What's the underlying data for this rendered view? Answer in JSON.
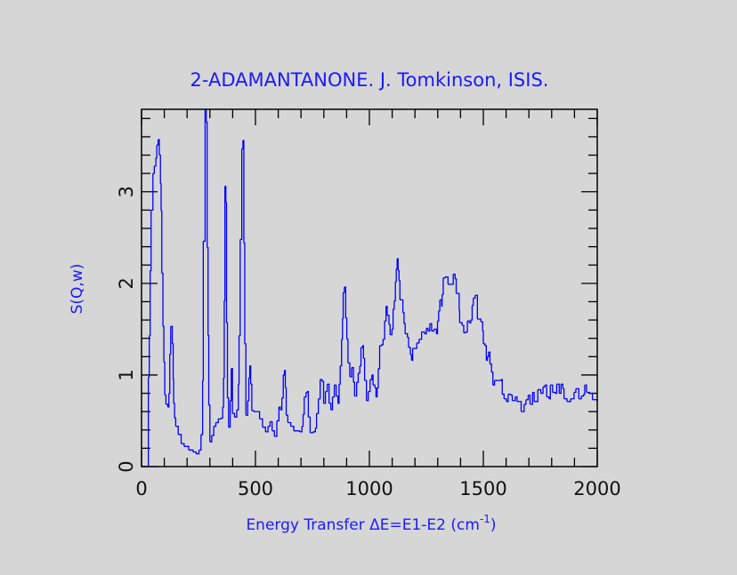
{
  "chart_data": {
    "type": "line",
    "style": "step",
    "title": "2-ADAMANTANONE. J. Tomkinson, ISIS.",
    "xlabel": "Energy Transfer ΔE=E1-E2 (cm",
    "xlabel_superscript": "-1",
    "xlabel_suffix": ")",
    "ylabel": "S(Q,w)",
    "xlim": [
      0,
      2000
    ],
    "ylim": [
      0,
      3.9
    ],
    "x_ticks": [
      0,
      500,
      1000,
      1500,
      2000
    ],
    "x_tick_labels": [
      "0",
      "500",
      "1000",
      "1500",
      "2000"
    ],
    "x_minor_step": 100,
    "y_ticks": [
      0,
      1,
      2,
      3
    ],
    "y_tick_labels": [
      "0",
      "1",
      "2",
      "3"
    ],
    "y_minor_step": 0.2,
    "grid": false,
    "colors": {
      "line": "#0000ff",
      "text": "#1a1aff",
      "axes": "#000000",
      "background": "#d6d6d6"
    },
    "x": [
      0,
      17,
      30,
      34,
      38,
      42,
      50,
      56,
      63,
      67,
      73,
      78,
      83,
      86,
      89,
      94,
      98,
      102,
      107,
      115,
      120,
      124,
      128,
      135,
      139,
      141,
      145,
      150,
      161,
      174,
      187,
      207,
      226,
      239,
      252,
      261,
      268,
      271,
      279,
      284,
      288,
      292,
      295,
      300,
      308,
      317,
      326,
      337,
      350,
      356,
      360,
      363,
      366,
      370,
      373,
      377,
      382,
      389,
      394,
      399,
      408,
      418,
      425,
      428,
      433,
      440,
      445,
      449,
      453,
      458,
      466,
      471,
      475,
      479,
      484,
      492,
      505,
      518,
      531,
      544,
      555,
      564,
      573,
      583,
      594,
      603,
      609,
      616,
      622,
      627,
      631,
      635,
      642,
      655,
      668,
      694,
      704,
      709,
      714,
      722,
      727,
      732,
      740,
      753,
      763,
      768,
      776,
      784,
      792,
      799,
      807,
      815,
      823,
      831,
      838,
      846,
      854,
      862,
      867,
      872,
      878,
      882,
      885,
      890,
      896,
      901,
      906,
      914,
      922,
      930,
      935,
      944,
      951,
      958,
      963,
      970,
      974,
      979,
      987,
      995,
      1003,
      1011,
      1016,
      1024,
      1029,
      1034,
      1039,
      1045,
      1053,
      1060,
      1067,
      1073,
      1078,
      1086,
      1091,
      1099,
      1104,
      1109,
      1114,
      1118,
      1122,
      1126,
      1130,
      1134,
      1142,
      1147,
      1152,
      1157,
      1162,
      1167,
      1172,
      1180,
      1185,
      1190,
      1198,
      1208,
      1218,
      1229,
      1242,
      1250,
      1257,
      1265,
      1273,
      1283,
      1294,
      1299,
      1304,
      1309,
      1317,
      1319,
      1324,
      1332,
      1345,
      1358,
      1368,
      1376,
      1381,
      1391,
      1394,
      1396,
      1407,
      1414,
      1422,
      1430,
      1438,
      1445,
      1451,
      1456,
      1464,
      1471,
      1474,
      1484,
      1489,
      1497,
      1500,
      1507,
      1513,
      1518,
      1523,
      1529,
      1536,
      1542,
      1549,
      1568,
      1578,
      1583,
      1591,
      1601,
      1609,
      1620,
      1627,
      1640,
      1648,
      1661,
      1666,
      1679,
      1687,
      1697,
      1705,
      1716,
      1723,
      1739,
      1752,
      1762,
      1770,
      1778,
      1788,
      1794,
      1804,
      1815,
      1822,
      1833,
      1841,
      1849,
      1854,
      1867,
      1883,
      1898,
      1906,
      1914,
      1919,
      1930,
      1940,
      1945,
      1953,
      1966,
      1979,
      2000
    ],
    "y": [
      0,
      0,
      0.98,
      1.43,
      2.14,
      2.8,
      3.2,
      3.28,
      3.37,
      3.51,
      3.57,
      3.4,
      3.09,
      2.79,
      2.11,
      1.53,
      1.14,
      0.78,
      0.68,
      0.65,
      0.8,
      1.23,
      1.53,
      1.34,
      0.95,
      0.69,
      0.53,
      0.44,
      0.35,
      0.25,
      0.22,
      0.18,
      0.16,
      0.14,
      0.18,
      0.35,
      0.94,
      2.46,
      3.9,
      3.76,
      2.39,
      1.43,
      0.67,
      0.27,
      0.34,
      0.44,
      0.48,
      0.52,
      0.53,
      0.65,
      0.97,
      1.81,
      3.06,
      2.88,
      1.57,
      0.75,
      0.43,
      0.72,
      1.07,
      0.58,
      0.54,
      0.62,
      0.9,
      1.43,
      2.48,
      3.47,
      3.56,
      2.44,
      1.34,
      0.56,
      0.72,
      0.97,
      1.1,
      0.9,
      0.61,
      0.6,
      0.6,
      0.52,
      0.43,
      0.38,
      0.44,
      0.49,
      0.39,
      0.33,
      0.5,
      0.65,
      0.62,
      0.75,
      1.0,
      1.05,
      0.86,
      0.56,
      0.48,
      0.44,
      0.39,
      0.38,
      0.44,
      0.57,
      0.76,
      0.81,
      0.82,
      0.54,
      0.37,
      0.38,
      0.42,
      0.58,
      0.74,
      0.95,
      0.93,
      0.69,
      0.82,
      0.9,
      0.69,
      0.62,
      0.76,
      0.89,
      0.77,
      0.69,
      0.9,
      1.1,
      1.39,
      1.62,
      1.9,
      1.96,
      1.62,
      1.39,
      1.13,
      0.98,
      1.08,
      0.92,
      0.77,
      0.92,
      1.02,
      1.1,
      1.3,
      1.32,
      1.18,
      0.94,
      0.72,
      0.82,
      0.95,
      1.0,
      0.89,
      0.86,
      0.76,
      0.86,
      1.07,
      1.32,
      1.33,
      1.39,
      1.59,
      1.75,
      1.65,
      1.55,
      1.44,
      1.5,
      1.72,
      1.81,
      2.02,
      2.16,
      2.27,
      2.14,
      2.03,
      1.82,
      1.82,
      1.68,
      1.56,
      1.45,
      1.45,
      1.41,
      1.3,
      1.22,
      1.16,
      1.29,
      1.29,
      1.35,
      1.39,
      1.47,
      1.45,
      1.51,
      1.48,
      1.56,
      1.48,
      1.5,
      1.45,
      1.59,
      1.7,
      1.82,
      1.75,
      1.88,
      2.06,
      2.07,
      1.99,
      1.99,
      2.1,
      2.05,
      1.89,
      1.89,
      1.7,
      1.57,
      1.54,
      1.46,
      1.47,
      1.59,
      1.57,
      1.6,
      1.76,
      1.84,
      1.87,
      1.87,
      1.61,
      1.61,
      1.58,
      1.48,
      1.34,
      1.32,
      1.16,
      1.2,
      1.25,
      1.12,
      1.03,
      0.89,
      0.94,
      0.94,
      0.95,
      0.79,
      0.74,
      0.71,
      0.79,
      0.78,
      0.72,
      0.76,
      0.71,
      0.71,
      0.6,
      0.68,
      0.73,
      0.78,
      0.68,
      0.81,
      0.71,
      0.84,
      0.8,
      0.87,
      0.89,
      0.76,
      0.74,
      0.89,
      0.81,
      0.8,
      0.9,
      0.8,
      0.9,
      0.85,
      0.74,
      0.71,
      0.74,
      0.81,
      0.85,
      0.85,
      0.74,
      0.77,
      0.79,
      0.89,
      0.81,
      0.8,
      0.73,
      0.71
    ]
  }
}
